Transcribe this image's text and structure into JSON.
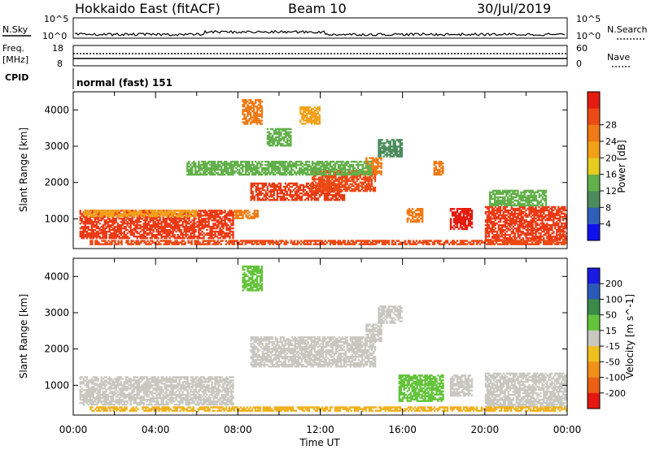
{
  "header": {
    "radar": "Hokkaido East (fitACF)",
    "beam": "Beam 10",
    "date": "30/Jul/2019"
  },
  "noise_panel": {
    "left_label": "N.Sky",
    "right_label": "N.Search",
    "left_ticks": [
      "10^5",
      "10^0"
    ],
    "right_ticks": [
      "10^5",
      "10^0"
    ]
  },
  "freq_panel": {
    "left_label_top": "Freq.",
    "left_label_bottom": "[MHz]",
    "right_label": "Nave",
    "left_ticks": [
      "18",
      "8"
    ],
    "right_ticks": [
      "60",
      "0"
    ]
  },
  "cpid_panel": {
    "label": "CPID",
    "text": "normal (fast) 151"
  },
  "chart_data": [
    {
      "type": "heatmap",
      "name": "power",
      "ylabel": "Slant Range [km]",
      "xlabel": "",
      "yticks": [
        "1000",
        "2000",
        "3000",
        "4000"
      ],
      "ylim": [
        180,
        4500
      ],
      "colorbar_label": "Power [dB]",
      "colorbar_ticks": [
        "4",
        "8",
        "12",
        "16",
        "20",
        "24",
        "28"
      ],
      "colorbar_colors": [
        "#1010ee",
        "#2f5fb8",
        "#4c8c5c",
        "#62b04a",
        "#e6cc1e",
        "#f2a018",
        "#f07a14",
        "#ec4a14",
        "#e41c10"
      ],
      "patches": [
        {
          "x0": 0.3,
          "x1": 7.8,
          "y0": 450,
          "y1": 1250,
          "color": "#ec3a14"
        },
        {
          "x0": 0.5,
          "x1": 6.0,
          "y0": 1050,
          "y1": 1250,
          "color": "#f2a018"
        },
        {
          "x0": 7.8,
          "x1": 9.0,
          "y0": 1000,
          "y1": 1250,
          "color": "#f07a14"
        },
        {
          "x0": 8.6,
          "x1": 13.2,
          "y0": 1500,
          "y1": 2000,
          "color": "#e63c12"
        },
        {
          "x0": 11.5,
          "x1": 14.7,
          "y0": 1750,
          "y1": 2350,
          "color": "#ec4a14"
        },
        {
          "x0": 14.2,
          "x1": 15.0,
          "y0": 2200,
          "y1": 2700,
          "color": "#f07a14"
        },
        {
          "x0": 8.2,
          "x1": 9.2,
          "y0": 3600,
          "y1": 4300,
          "color": "#f07a14"
        },
        {
          "x0": 9.4,
          "x1": 10.6,
          "y0": 3000,
          "y1": 3500,
          "color": "#62b04a"
        },
        {
          "x0": 11.0,
          "x1": 12.0,
          "y0": 3600,
          "y1": 4100,
          "color": "#f2a018"
        },
        {
          "x0": 14.8,
          "x1": 16.0,
          "y0": 2700,
          "y1": 3200,
          "color": "#4c8c5c"
        },
        {
          "x0": 16.2,
          "x1": 17.0,
          "y0": 900,
          "y1": 1300,
          "color": "#f07a14"
        },
        {
          "x0": 17.5,
          "x1": 18.0,
          "y0": 2200,
          "y1": 2600,
          "color": "#f07a14"
        },
        {
          "x0": 18.3,
          "x1": 19.4,
          "y0": 700,
          "y1": 1300,
          "color": "#e41c10"
        },
        {
          "x0": 20.0,
          "x1": 24.0,
          "y0": 400,
          "y1": 1350,
          "color": "#ec3a14"
        },
        {
          "x0": 20.2,
          "x1": 23.0,
          "y0": 1350,
          "y1": 1800,
          "color": "#62b04a"
        },
        {
          "x0": 0.8,
          "x1": 24.0,
          "y0": 280,
          "y1": 420,
          "color": "#ec4a14"
        },
        {
          "x0": 5.5,
          "x1": 14.5,
          "y0": 2200,
          "y1": 2600,
          "color": "#62b04a"
        }
      ]
    },
    {
      "type": "heatmap",
      "name": "velocity",
      "ylabel": "Slant Range [km]",
      "xlabel": "Time UT",
      "xticks": [
        "00:00",
        "04:00",
        "08:00",
        "12:00",
        "16:00",
        "20:00",
        "00:00"
      ],
      "yticks": [
        "1000",
        "2000",
        "3000",
        "4000"
      ],
      "ylim": [
        180,
        4500
      ],
      "colorbar_label": "Velocity [m s^-1]",
      "colorbar_ticks": [
        "200",
        "100",
        "50",
        "15",
        "-15",
        "-50",
        "-100",
        "-200"
      ],
      "colorbar_colors": [
        "#1a1ae0",
        "#2a5ab8",
        "#3a8a48",
        "#64c43c",
        "#c8c8c0",
        "#f0c020",
        "#f09018",
        "#ec6014",
        "#e41810"
      ],
      "patches": [
        {
          "x0": 0.3,
          "x1": 7.8,
          "y0": 450,
          "y1": 1250,
          "color": "#c8c8c0"
        },
        {
          "x0": 8.6,
          "x1": 14.7,
          "y0": 1500,
          "y1": 2350,
          "color": "#c8c8c0"
        },
        {
          "x0": 14.2,
          "x1": 15.0,
          "y0": 2200,
          "y1": 2700,
          "color": "#c8c8c0"
        },
        {
          "x0": 8.2,
          "x1": 9.2,
          "y0": 3600,
          "y1": 4300,
          "color": "#64c43c"
        },
        {
          "x0": 15.8,
          "x1": 18.0,
          "y0": 550,
          "y1": 1300,
          "color": "#64c43c"
        },
        {
          "x0": 18.3,
          "x1": 19.4,
          "y0": 700,
          "y1": 1300,
          "color": "#c8c8c0"
        },
        {
          "x0": 20.0,
          "x1": 24.0,
          "y0": 400,
          "y1": 1350,
          "color": "#c8c8c0"
        },
        {
          "x0": 0.8,
          "x1": 24.0,
          "y0": 280,
          "y1": 420,
          "color": "#f0b020"
        },
        {
          "x0": 14.8,
          "x1": 16.0,
          "y0": 2700,
          "y1": 3200,
          "color": "#c8c8c0"
        }
      ]
    }
  ]
}
